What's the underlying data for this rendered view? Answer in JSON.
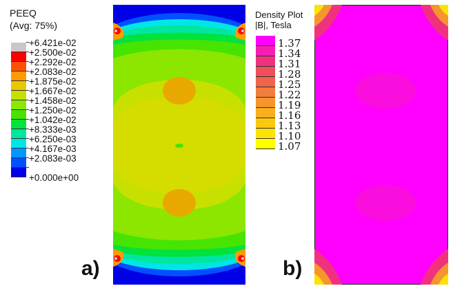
{
  "panel_a": {
    "title_line1": "PEEQ",
    "title_line2": "(Avg: 75%)",
    "letter": "a)",
    "legend": [
      {
        "label": "+6.421e-02",
        "color": "#c8c8c8"
      },
      {
        "label": "+2.500e-02",
        "color": "#ff0000"
      },
      {
        "label": "+2.292e-02",
        "color": "#ff5000"
      },
      {
        "label": "+2.083e-02",
        "color": "#ff9a00"
      },
      {
        "label": "+1.875e-02",
        "color": "#e8c800"
      },
      {
        "label": "+1.667e-02",
        "color": "#c8e000"
      },
      {
        "label": "+1.458e-02",
        "color": "#8ce600"
      },
      {
        "label": "+1.250e-02",
        "color": "#46e400"
      },
      {
        "label": "+1.042e-02",
        "color": "#00e23c"
      },
      {
        "label": "+8.333e-03",
        "color": "#00e6a0"
      },
      {
        "label": "+6.250e-03",
        "color": "#00e6e6"
      },
      {
        "label": "+4.167e-03",
        "color": "#0096ff"
      },
      {
        "label": "+2.083e-03",
        "color": "#0050ff"
      }
    ],
    "legend_last_label": "+0.000e+00",
    "legend_last_color": "#0000e6"
  },
  "panel_b": {
    "title_line1": "Density Plot",
    "title_line2": "|B|, Tesla",
    "letter": "b)",
    "legend": [
      {
        "label": "1.37",
        "color": "#ff00ff"
      },
      {
        "label": "1.34",
        "color": "#f51eb4"
      },
      {
        "label": "1.31",
        "color": "#f0327e"
      },
      {
        "label": "1.28",
        "color": "#f04e5a"
      },
      {
        "label": "1.25",
        "color": "#f0644b"
      },
      {
        "label": "1.22",
        "color": "#f27d3c"
      },
      {
        "label": "1.19",
        "color": "#f5962d"
      },
      {
        "label": "1.16",
        "color": "#f8af1e"
      },
      {
        "label": "1.13",
        "color": "#fbc80f"
      },
      {
        "label": "1.10",
        "color": "#fde205"
      },
      {
        "label": "1.07",
        "color": "#ffff00"
      }
    ]
  }
}
